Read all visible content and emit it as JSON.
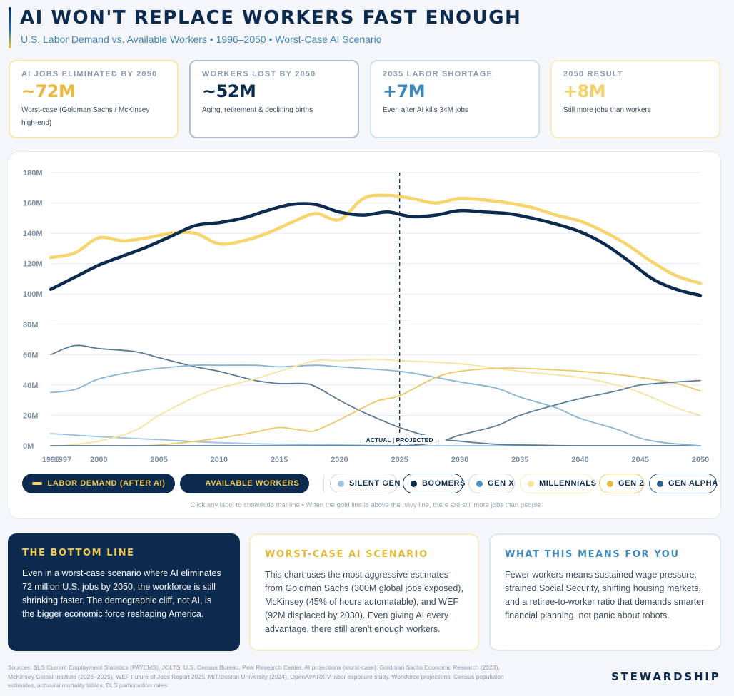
{
  "header": {
    "title": "AI WON'T REPLACE WORKERS FAST ENOUGH",
    "subtitle": "U.S. Labor Demand vs. Available Workers • 1996–2050 • Worst-Case AI Scenario"
  },
  "stats": [
    {
      "label": "AI JOBS ELIMINATED BY 2050",
      "value": "~72M",
      "desc": "Worst-case (Goldman Sachs / McKinsey high-end)",
      "color": "#e9b93e"
    },
    {
      "label": "WORKERS LOST BY 2050",
      "value": "~52M",
      "desc": "Aging, retirement & declining births",
      "color": "#0c2b4e"
    },
    {
      "label": "2035 LABOR SHORTAGE",
      "value": "+7M",
      "desc": "Even after AI kills 34M jobs",
      "color": "#3f87b8"
    },
    {
      "label": "2050 RESULT",
      "value": "+8M",
      "desc": "Still more jobs than workers",
      "color": "#f2d16b"
    }
  ],
  "chart_data": {
    "type": "line",
    "x_ticks": [
      1996,
      1997,
      2000,
      2005,
      2010,
      2015,
      2020,
      2025,
      2030,
      2035,
      2040,
      2045,
      2050
    ],
    "xlim": [
      1996,
      2050
    ],
    "ylim": [
      0,
      180
    ],
    "y_ticks": [
      0,
      20,
      40,
      60,
      80,
      100,
      120,
      140,
      160,
      180
    ],
    "y_tick_labels": [
      "0M",
      "20M",
      "40M",
      "60M",
      "80M",
      "100M",
      "120M",
      "140M",
      "160M",
      "180M"
    ],
    "divider_year": 2025,
    "divider_label": "← ACTUAL | PROJECTED →",
    "grid": true,
    "legend_position": "bottom",
    "series": [
      {
        "name": "LABOR DEMAND (AFTER AI)",
        "color": "#f7d56e",
        "width": 4.5,
        "x": [
          1996,
          1998,
          2000,
          2002,
          2004,
          2006,
          2008,
          2010,
          2012,
          2014,
          2016,
          2018,
          2020,
          2022,
          2024,
          2026,
          2028,
          2030,
          2032,
          2034,
          2036,
          2038,
          2040,
          2042,
          2044,
          2046,
          2048,
          2050
        ],
        "y": [
          124,
          127,
          137,
          135,
          137,
          140,
          140,
          133,
          135,
          140,
          147,
          153,
          149,
          163,
          165,
          163,
          160,
          163,
          162,
          160,
          157,
          152,
          148,
          141,
          132,
          121,
          112,
          107
        ]
      },
      {
        "name": "AVAILABLE WORKERS",
        "color": "#0c2b4e",
        "width": 4.5,
        "x": [
          1996,
          1998,
          2000,
          2002,
          2004,
          2006,
          2008,
          2010,
          2012,
          2014,
          2016,
          2018,
          2020,
          2022,
          2024,
          2026,
          2028,
          2030,
          2032,
          2034,
          2036,
          2038,
          2040,
          2042,
          2044,
          2046,
          2048,
          2050
        ],
        "y": [
          103,
          111,
          119,
          125,
          131,
          138,
          145,
          147,
          150,
          155,
          159,
          159,
          154,
          152,
          154,
          151,
          152,
          155,
          154,
          153,
          150,
          146,
          141,
          133,
          122,
          110,
          103,
          99
        ]
      },
      {
        "name": "SILENT GEN",
        "color": "#9cc3e0",
        "width": 1.8,
        "x": [
          1996,
          2000,
          2005,
          2010,
          2015,
          2020,
          2025,
          2030,
          2035,
          2040,
          2050
        ],
        "y": [
          8,
          6,
          4,
          2,
          1,
          0.5,
          0,
          0,
          0,
          0,
          0
        ]
      },
      {
        "name": "BOOMERS",
        "color": "#5d7a95",
        "width": 1.8,
        "x": [
          1996,
          1998,
          2000,
          2003,
          2005,
          2008,
          2010,
          2013,
          2015,
          2017,
          2018,
          2020,
          2022,
          2025,
          2028,
          2030,
          2033,
          2035,
          2040,
          2045,
          2050
        ],
        "y": [
          60,
          66,
          64,
          62,
          58,
          52,
          49,
          43,
          41,
          41,
          39,
          30,
          22,
          12,
          5,
          3,
          1,
          0.5,
          0,
          0,
          0
        ]
      },
      {
        "name": "GEN X",
        "color": "#8ab4d4",
        "width": 1.8,
        "x": [
          1996,
          1998,
          2000,
          2003,
          2005,
          2008,
          2010,
          2013,
          2015,
          2018,
          2020,
          2025,
          2028,
          2030,
          2033,
          2035,
          2038,
          2040,
          2043,
          2045,
          2047,
          2050
        ],
        "y": [
          35,
          37,
          44,
          49,
          51,
          53,
          53,
          53,
          52,
          53,
          52,
          49,
          45,
          42,
          38,
          32,
          25,
          18,
          11,
          5,
          2,
          0
        ]
      },
      {
        "name": "MILLENNIALS",
        "color": "#f7e3a0",
        "width": 1.8,
        "x": [
          1996,
          1997,
          2000,
          2003,
          2005,
          2008,
          2010,
          2013,
          2015,
          2018,
          2020,
          2023,
          2025,
          2030,
          2035,
          2040,
          2043,
          2045,
          2048,
          2050
        ],
        "y": [
          0,
          0,
          3,
          10,
          20,
          32,
          38,
          44,
          49,
          56,
          56,
          57,
          56,
          54,
          49,
          45,
          40,
          35,
          25,
          20
        ]
      },
      {
        "name": "GEN Z",
        "color": "#ecc766",
        "width": 1.8,
        "x": [
          1996,
          2000,
          2004,
          2007,
          2010,
          2013,
          2015,
          2017,
          2018,
          2020,
          2023,
          2025,
          2028,
          2030,
          2033,
          2035,
          2038,
          2040,
          2043,
          2045,
          2048,
          2050
        ],
        "y": [
          0,
          0,
          0,
          2,
          5,
          9,
          12,
          10,
          10,
          17,
          29,
          33,
          45,
          49,
          51,
          51,
          50,
          49,
          47,
          45,
          41,
          36
        ]
      },
      {
        "name": "GEN ALPHA",
        "color": "#5c7f9d",
        "width": 1.8,
        "x": [
          1996,
          2020,
          2025,
          2028,
          2030,
          2033,
          2035,
          2038,
          2040,
          2043,
          2045,
          2048,
          2050
        ],
        "y": [
          0,
          0,
          0,
          2,
          7,
          13,
          20,
          27,
          31,
          36,
          40,
          42,
          43
        ]
      }
    ]
  },
  "legend": [
    {
      "label": "LABOR DEMAND (AFTER AI)",
      "color": "#f7d56e",
      "style": "solid"
    },
    {
      "label": "AVAILABLE WORKERS",
      "color": "#0c2b4e",
      "style": "solid"
    },
    {
      "label": "SILENT GEN",
      "color": "#9cc3e0",
      "style": "outline"
    },
    {
      "label": "BOOMERS",
      "color": "#0c2b4e",
      "style": "outline"
    },
    {
      "label": "GEN X",
      "color": "#4e91c4",
      "style": "outline"
    },
    {
      "label": "MILLENNIALS",
      "color": "#f7e3a0",
      "style": "outline"
    },
    {
      "label": "GEN Z",
      "color": "#e9b93e",
      "style": "outline"
    },
    {
      "label": "GEN ALPHA",
      "color": "#2f5f8a",
      "style": "outline"
    }
  ],
  "hint": "Click any label to show/hide that line • When the gold line is above the navy line, there are still more jobs than people",
  "boxes": [
    {
      "title": "THE BOTTOM LINE",
      "text": "Even in a worst-case scenario where AI eliminates 72 million U.S. jobs by 2050, the workforce is still shrinking faster. The demographic cliff, not AI, is the bigger economic force reshaping America."
    },
    {
      "title": "WORST-CASE AI SCENARIO",
      "text": "This chart uses the most aggressive estimates from Goldman Sachs (300M global jobs exposed), McKinsey (45% of hours automatable), and WEF (92M displaced by 2030). Even giving AI every advantage, there still aren't enough workers."
    },
    {
      "title": "WHAT THIS MEANS FOR YOU",
      "text": "Fewer workers means sustained wage pressure, strained Social Security, shifting housing markets, and a retiree-to-worker ratio that demands smarter financial planning, not panic about robots."
    }
  ],
  "sources": "Sources: BLS Current Employment Statistics (PAYEMS), JOLTS, U.S. Census Bureau, Pew Research Center. AI projections (worst-case): Goldman Sachs Economic Research (2023), McKinsey Global Institute (2023–2025), WEF Future of Jobs Report 2025, MIT/Boston University (2024), OpenAI/ARXIV labor exposure study. Workforce projections: Census population estimates, actuarial mortality tables, BLS participation rates.",
  "brand": "STEWARDSHIP"
}
